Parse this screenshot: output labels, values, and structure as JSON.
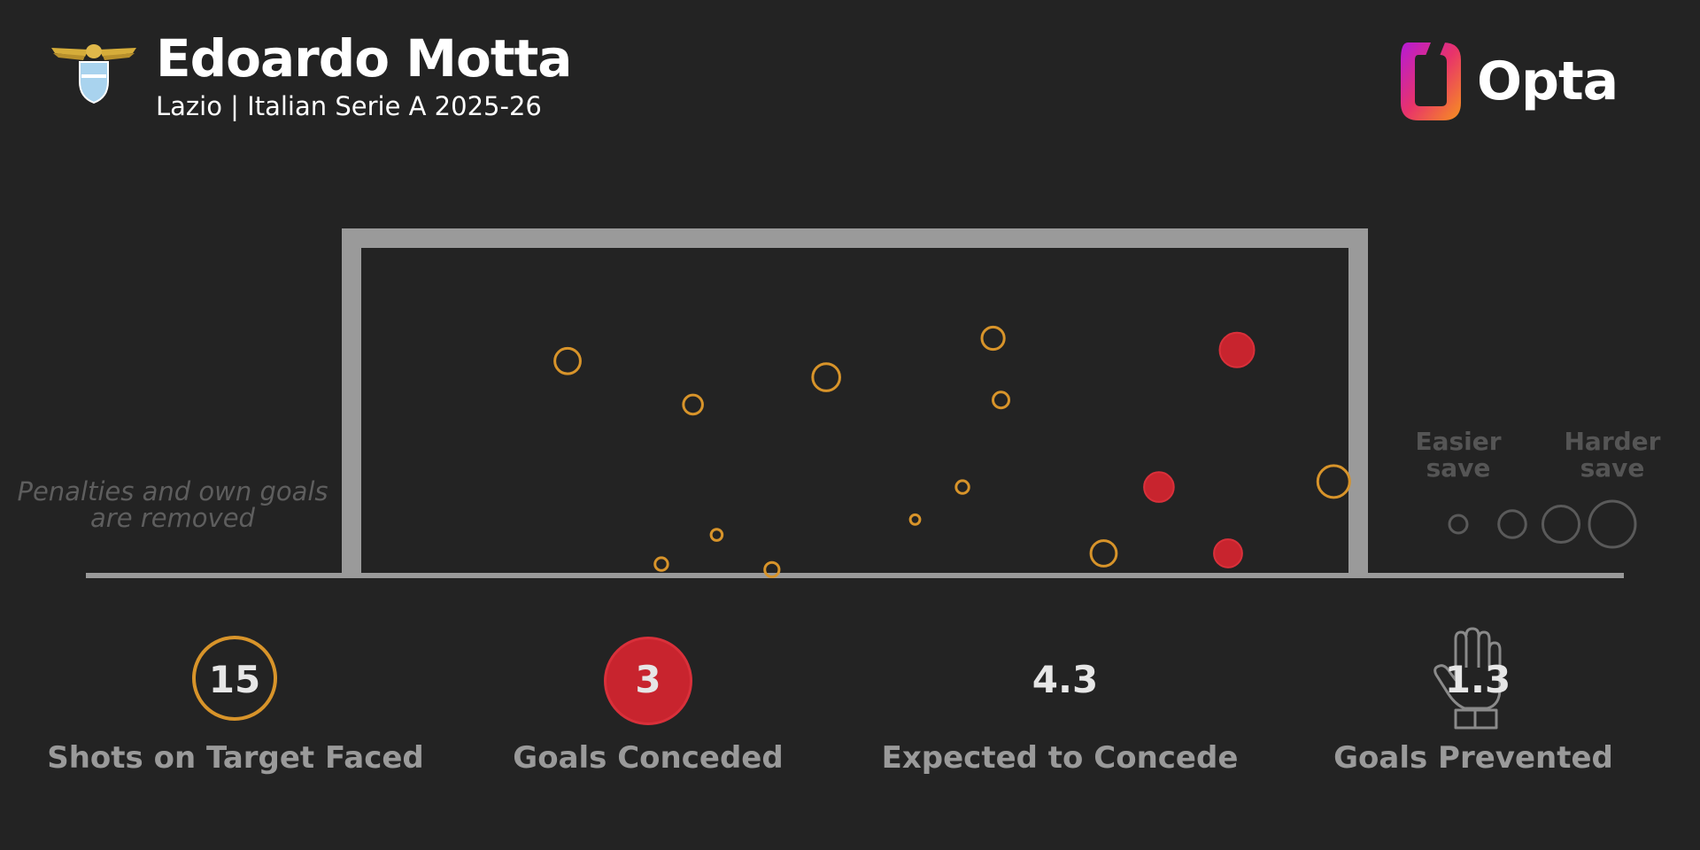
{
  "header": {
    "player_name": "Edoardo Motta",
    "subtitle": "Lazio | Italian Serie A 2025-26",
    "crest_icon": "lazio-eagle-crest-icon",
    "brand": "Opta"
  },
  "note": {
    "line1": "Penalties and own goals",
    "line2": "are removed"
  },
  "legend": {
    "easier_line1": "Easier",
    "easier_line2": "save",
    "harder_line1": "Harder",
    "harder_line2": "save"
  },
  "stats": {
    "shots_value": "15",
    "shots_label": "Shots on Target Faced",
    "goals_value": "3",
    "goals_label": "Goals Conceded",
    "xg_value": "4.3",
    "xg_label": "Expected to Concede",
    "prevented_value": "1.3",
    "prevented_label": "Goals Prevented"
  },
  "colors": {
    "background": "#232323",
    "save": "#d8942a",
    "goal": "#c8242e",
    "goal_frame": "#9a9a9a"
  },
  "chart_data": {
    "type": "scatter",
    "description_units": "goal-mouth position: x from left post (0) to right post (1), y from ground (0) to crossbar (1); size = shot difficulty 0-1",
    "series": [
      {
        "name": "Saves",
        "points": [
          {
            "x": 0.209,
            "y": 0.652,
            "size": 0.55
          },
          {
            "x": 0.336,
            "y": 0.518,
            "size": 0.35
          },
          {
            "x": 0.471,
            "y": 0.602,
            "size": 0.6
          },
          {
            "x": 0.64,
            "y": 0.722,
            "size": 0.45
          },
          {
            "x": 0.648,
            "y": 0.532,
            "size": 0.25
          },
          {
            "x": 0.609,
            "y": 0.264,
            "size": 0.15
          },
          {
            "x": 0.561,
            "y": 0.164,
            "size": 0.05
          },
          {
            "x": 0.36,
            "y": 0.117,
            "size": 0.1
          },
          {
            "x": 0.304,
            "y": 0.027,
            "size": 0.15
          },
          {
            "x": 0.416,
            "y": 0.01,
            "size": 0.2
          },
          {
            "x": 0.752,
            "y": 0.06,
            "size": 0.55
          },
          {
            "x": 0.985,
            "y": 0.281,
            "size": 0.75
          }
        ]
      },
      {
        "name": "Goals",
        "points": [
          {
            "x": 0.887,
            "y": 0.686,
            "size": 0.75
          },
          {
            "x": 0.808,
            "y": 0.264,
            "size": 0.6
          },
          {
            "x": 0.878,
            "y": 0.06,
            "size": 0.55
          }
        ]
      }
    ],
    "legend_sizes": [
      0.0,
      0.33,
      0.66,
      1.0
    ]
  }
}
